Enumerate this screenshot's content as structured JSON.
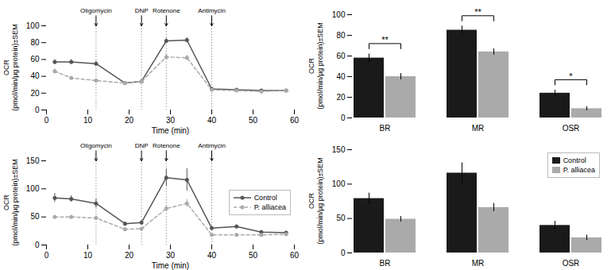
{
  "chart_data": [
    {
      "type": "line",
      "xlabel": "Time (min)",
      "ylabel": "OCR\n(pmol/min/µg protein)±SEM",
      "xlim": [
        0,
        60
      ],
      "xticks": [
        0,
        10,
        20,
        30,
        40,
        50,
        60
      ],
      "ylim": [
        0,
        100
      ],
      "yticks": [
        0,
        20,
        40,
        60,
        80,
        100
      ],
      "x": [
        2,
        6,
        12,
        19,
        23,
        29,
        34,
        40,
        46,
        52,
        58
      ],
      "series": [
        {
          "name": "Control",
          "color": "#555555",
          "marker": "o",
          "line_style": "solid",
          "values": [
            57,
            57,
            55,
            32,
            34,
            82,
            83,
            25,
            24,
            23,
            23
          ],
          "errors": [
            3,
            3,
            3,
            2,
            2,
            3,
            3,
            1,
            1,
            1,
            1
          ]
        },
        {
          "name": "P. alliacea",
          "color": "#aaaaaa",
          "marker": "o",
          "line_style": "dashed",
          "values": [
            46,
            38,
            35,
            32,
            34,
            63,
            62,
            24,
            23,
            22,
            23
          ],
          "errors": [
            3,
            2,
            2,
            2,
            2,
            3,
            3,
            1,
            1,
            1,
            1
          ]
        }
      ],
      "annotations": [
        {
          "x": 12,
          "text": "Oligomycin"
        },
        {
          "x": 23,
          "text": "DNP"
        },
        {
          "x": 29,
          "text": "Rotenone"
        },
        {
          "x": 40,
          "text": "Antimycin"
        }
      ]
    },
    {
      "type": "bar",
      "ylabel": "OCR\n(pmol/min/µg protein)±SEM",
      "categories": [
        "BR",
        "MR",
        "OSR"
      ],
      "ylim": [
        0,
        100
      ],
      "yticks": [
        0,
        20,
        40,
        60,
        80,
        100
      ],
      "series": [
        {
          "name": "Control",
          "color": "#1a1a1a",
          "values": [
            58,
            85,
            24
          ],
          "errors": [
            4,
            4,
            3
          ]
        },
        {
          "name": "P. alliacea",
          "color": "#aaaaaa",
          "values": [
            40,
            64,
            9
          ],
          "errors": [
            3,
            3,
            2
          ]
        }
      ],
      "annotations": [
        {
          "category": "BR",
          "text": "**"
        },
        {
          "category": "MR",
          "text": "**"
        },
        {
          "category": "OSR",
          "text": "*"
        }
      ]
    },
    {
      "type": "line",
      "xlabel": "Time (min)",
      "ylabel": "OCR\n(pmol/min/µg protein)±SEM",
      "xlim": [
        0,
        60
      ],
      "xticks": [
        0,
        10,
        20,
        30,
        40,
        50,
        60
      ],
      "ylim": [
        0,
        150
      ],
      "yticks": [
        0,
        50,
        100,
        150
      ],
      "x": [
        2,
        6,
        12,
        19,
        23,
        29,
        34,
        40,
        46,
        52,
        58
      ],
      "series": [
        {
          "name": "Control",
          "color": "#555555",
          "marker": "o",
          "line_style": "solid",
          "values": [
            84,
            82,
            74,
            38,
            40,
            120,
            116,
            30,
            33,
            23,
            22
          ],
          "errors": [
            8,
            6,
            8,
            3,
            3,
            15,
            20,
            3,
            3,
            2,
            2
          ]
        },
        {
          "name": "P. alliacea",
          "color": "#aaaaaa",
          "marker": "o",
          "line_style": "dashed",
          "values": [
            50,
            50,
            48,
            28,
            29,
            65,
            74,
            18,
            18,
            18,
            19
          ],
          "errors": [
            3,
            3,
            4,
            2,
            2,
            5,
            7,
            2,
            2,
            2,
            2
          ]
        }
      ],
      "annotations": [
        {
          "x": 12,
          "text": "Oligomycin"
        },
        {
          "x": 23,
          "text": "DNP"
        },
        {
          "x": 29,
          "text": "Rotenone"
        },
        {
          "x": 40,
          "text": "Antimycin"
        }
      ],
      "legend": "center right"
    },
    {
      "type": "bar",
      "ylabel": "OCR\n(pmol/min/µg protein)±SEM",
      "categories": [
        "BR",
        "MR",
        "OSR"
      ],
      "ylim": [
        0,
        150
      ],
      "yticks": [
        0,
        50,
        100,
        150
      ],
      "series": [
        {
          "name": "Control",
          "color": "#1a1a1a",
          "values": [
            79,
            116,
            40
          ],
          "errors": [
            8,
            15,
            6
          ]
        },
        {
          "name": "P. alliacea",
          "color": "#aaaaaa",
          "values": [
            49,
            66,
            22
          ],
          "errors": [
            4,
            6,
            4
          ]
        }
      ],
      "legend": "upper right"
    }
  ]
}
